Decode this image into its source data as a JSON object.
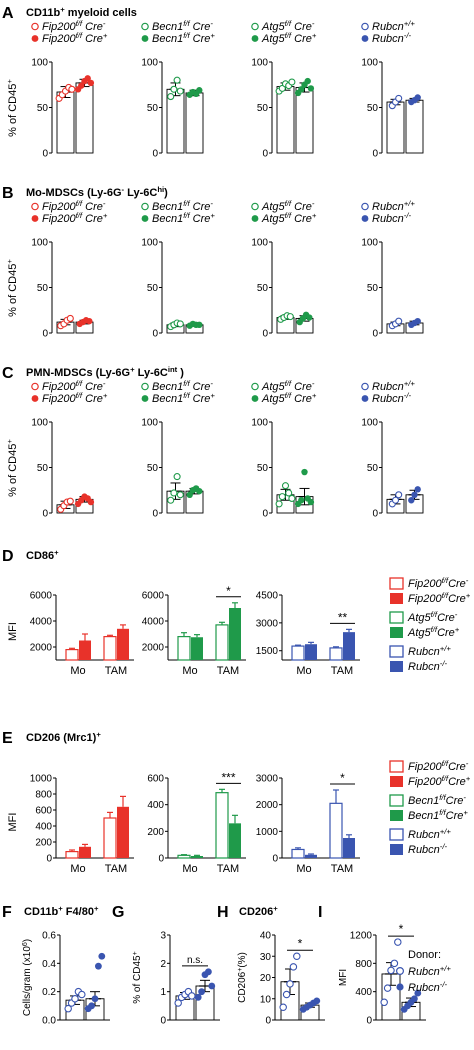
{
  "colors": {
    "red": "#e8322a",
    "green": "#1f9a4a",
    "blue": "#3a55b0",
    "axis": "#000000"
  },
  "panels": [
    {
      "letter": "A",
      "title_parts": [
        "CD11b",
        "+",
        " myeloid cells"
      ],
      "ylabel": "% of CD45",
      "ylabel_sup": "+",
      "ylim": [
        0,
        100
      ],
      "yticks": [
        "0",
        "50",
        "100"
      ],
      "groups": [
        {
          "color": "red",
          "legend": [
            [
              "Fip200",
              "f/f",
              " Cre",
              "-"
            ],
            [
              "Fip200",
              "f/f",
              " Cre",
              "+"
            ]
          ],
          "bars": [
            67,
            77
          ],
          "err": [
            6,
            4
          ],
          "points": [
            [
              60,
              64,
              68,
              72,
              70
            ],
            [
              70,
              74,
              79,
              82,
              77
            ]
          ]
        },
        {
          "color": "green",
          "legend": [
            [
              "Becn1",
              "f/f",
              " Cre",
              "-"
            ],
            [
              "Becn1",
              "f/f",
              " Cre",
              "+"
            ]
          ],
          "bars": [
            70,
            66
          ],
          "err": [
            7,
            3
          ],
          "points": [
            [
              62,
              70,
              80,
              68
            ],
            [
              64,
              67,
              65,
              69
            ]
          ]
        },
        {
          "color": "green",
          "legend": [
            [
              "Atg5",
              "f/f",
              " Cre",
              "-"
            ],
            [
              "Atg5",
              "f/f",
              " Cre",
              "+"
            ]
          ],
          "bars": [
            73,
            72
          ],
          "err": [
            4,
            5
          ],
          "points": [
            [
              68,
              71,
              76,
              74,
              78
            ],
            [
              66,
              70,
              75,
              79,
              71
            ]
          ]
        },
        {
          "color": "blue",
          "legend": [
            [
              "Rubcn",
              "+/+",
              "",
              ""
            ],
            [
              "Rubcn",
              "-/-",
              "",
              ""
            ]
          ],
          "bars": [
            56,
            58
          ],
          "err": [
            3,
            2
          ],
          "points": [
            [
              52,
              56,
              60
            ],
            [
              56,
              58,
              61
            ]
          ]
        }
      ]
    },
    {
      "letter": "B",
      "title_parts": [
        "Mo-MDSCs (Ly-6G",
        "-",
        "  Ly-6C",
        "hi",
        ")"
      ],
      "ylabel": "% of CD45",
      "ylabel_sup": "+",
      "ylim": [
        0,
        100
      ],
      "yticks": [
        "0",
        "50",
        "100"
      ],
      "groups": [
        {
          "color": "red",
          "legend": [
            [
              "Fip200",
              "f/f",
              " Cre",
              "-"
            ],
            [
              "Fip200",
              "f/f",
              " Cre",
              "+"
            ]
          ],
          "bars": [
            12,
            12
          ],
          "err": [
            3,
            2
          ],
          "points": [
            [
              8,
              10,
              14,
              16
            ],
            [
              10,
              12,
              14,
              13
            ]
          ]
        },
        {
          "color": "green",
          "legend": [
            [
              "Becn1",
              "f/f",
              " Cre",
              "-"
            ],
            [
              "Becn1",
              "f/f",
              " Cre",
              "+"
            ]
          ],
          "bars": [
            9,
            9
          ],
          "err": [
            2,
            1
          ],
          "points": [
            [
              7,
              9,
              11,
              10
            ],
            [
              8,
              10,
              9,
              9
            ]
          ]
        },
        {
          "color": "green",
          "legend": [
            [
              "Atg5",
              "f/f",
              " Cre",
              "-"
            ],
            [
              "Atg5",
              "f/f",
              " Cre",
              "+"
            ]
          ],
          "bars": [
            17,
            16
          ],
          "err": [
            2,
            3
          ],
          "points": [
            [
              15,
              17,
              19,
              18
            ],
            [
              12,
              16,
              20,
              17
            ]
          ]
        },
        {
          "color": "blue",
          "legend": [
            [
              "Rubcn",
              "+/+",
              "",
              ""
            ],
            [
              "Rubcn",
              "-/-",
              "",
              ""
            ]
          ],
          "bars": [
            10,
            11
          ],
          "err": [
            2,
            2
          ],
          "points": [
            [
              8,
              10,
              13
            ],
            [
              9,
              11,
              13
            ]
          ]
        }
      ]
    },
    {
      "letter": "C",
      "title_parts": [
        "PMN-MDSCs  (Ly-6G",
        "+",
        "  Ly-6C",
        "int",
        " )"
      ],
      "ylabel": "% of CD45",
      "ylabel_sup": "+",
      "ylim": [
        0,
        100
      ],
      "yticks": [
        "0",
        "50",
        "100"
      ],
      "groups": [
        {
          "color": "red",
          "legend": [
            [
              "Fip200",
              "f/f",
              " Cre",
              "-"
            ],
            [
              "Fip200",
              "f/f",
              " Cre",
              "+"
            ]
          ],
          "bars": [
            9,
            15
          ],
          "err": [
            4,
            3
          ],
          "points": [
            [
              4,
              8,
              12,
              13
            ],
            [
              10,
              14,
              18,
              16,
              12
            ]
          ]
        },
        {
          "color": "green",
          "legend": [
            [
              "Becn1",
              "f/f",
              " Cre",
              "-"
            ],
            [
              "Becn1",
              "f/f",
              " Cre",
              "+"
            ]
          ],
          "bars": [
            24,
            24
          ],
          "err": [
            9,
            3
          ],
          "points": [
            [
              14,
              22,
              40,
              20
            ],
            [
              20,
              25,
              27,
              24
            ]
          ]
        },
        {
          "color": "green",
          "legend": [
            [
              "Atg5",
              "f/f",
              " Cre",
              "-"
            ],
            [
              "Atg5",
              "f/f",
              " Cre",
              "+"
            ]
          ],
          "bars": [
            20,
            18
          ],
          "err": [
            6,
            9
          ],
          "points": [
            [
              10,
              18,
              30,
              22,
              16
            ],
            [
              10,
              14,
              45,
              16,
              12
            ]
          ]
        },
        {
          "color": "blue",
          "legend": [
            [
              "Rubcn",
              "+/+",
              "",
              ""
            ],
            [
              "Rubcn",
              "-/-",
              "",
              ""
            ]
          ],
          "bars": [
            15,
            20
          ],
          "err": [
            5,
            5
          ],
          "points": [
            [
              10,
              14,
              20
            ],
            [
              14,
              20,
              26
            ]
          ]
        }
      ]
    }
  ],
  "panel_d": {
    "letter": "D",
    "title_parts": [
      "CD86",
      "+"
    ],
    "ylabel": "MFI",
    "xcats": [
      "Mo",
      "TAM"
    ],
    "charts": [
      {
        "color": "red",
        "ylim": [
          1000,
          6000
        ],
        "yticks": [
          "2000",
          "4000",
          "6000"
        ],
        "ytick_vals": [
          2000,
          4000,
          6000
        ],
        "bars": [
          [
            1800,
            2500
          ],
          [
            2800,
            3400
          ]
        ],
        "err": [
          [
            100,
            500
          ],
          [
            100,
            300
          ]
        ],
        "sig": ""
      },
      {
        "color": "green",
        "ylim": [
          1000,
          6000
        ],
        "yticks": [
          "2000",
          "4000",
          "6000"
        ],
        "ytick_vals": [
          2000,
          4000,
          6000
        ],
        "bars": [
          [
            2800,
            2750
          ],
          [
            3700,
            5000
          ]
        ],
        "err": [
          [
            300,
            200
          ],
          [
            200,
            400
          ]
        ],
        "sig": "*"
      },
      {
        "color": "blue",
        "ylim": [
          1000,
          4500
        ],
        "yticks": [
          "1500",
          "3000",
          "4500"
        ],
        "ytick_vals": [
          1500,
          3000,
          4500
        ],
        "bars": [
          [
            1750,
            1850
          ],
          [
            1650,
            2500
          ]
        ],
        "err": [
          [
            50,
            100
          ],
          [
            60,
            150
          ]
        ],
        "sig": "**"
      }
    ],
    "legend": [
      {
        "color": "red",
        "open": true,
        "parts": [
          "Fip200",
          "f/f",
          "Cre",
          "-"
        ]
      },
      {
        "color": "red",
        "open": false,
        "parts": [
          "Fip200",
          "f/f",
          "Cre",
          "+"
        ]
      },
      {
        "color": "green",
        "open": true,
        "parts": [
          "Atg5",
          "f/f",
          "Cre",
          "-"
        ]
      },
      {
        "color": "green",
        "open": false,
        "parts": [
          "Atg5",
          "f/f",
          "Cre",
          "+"
        ]
      },
      {
        "color": "blue",
        "open": true,
        "parts": [
          "Rubcn",
          "+/+",
          "",
          ""
        ]
      },
      {
        "color": "blue",
        "open": false,
        "parts": [
          "Rubcn",
          "-/-",
          "",
          ""
        ]
      }
    ]
  },
  "panel_e": {
    "letter": "E",
    "title": "CD206 (Mrc1)",
    "title_sup": "+",
    "ylabel": "MFI",
    "xcats": [
      "Mo",
      "TAM"
    ],
    "charts": [
      {
        "color": "red",
        "ylim": [
          0,
          1000
        ],
        "yticks": [
          "0",
          "200",
          "400",
          "600",
          "800",
          "1000"
        ],
        "ytick_vals": [
          0,
          200,
          400,
          600,
          800,
          1000
        ],
        "bars": [
          [
            80,
            140
          ],
          [
            500,
            640
          ]
        ],
        "err": [
          [
            20,
            30
          ],
          [
            70,
            130
          ]
        ],
        "sig": ""
      },
      {
        "color": "green",
        "ylim": [
          0,
          600
        ],
        "yticks": [
          "0",
          "200",
          "400",
          "600"
        ],
        "ytick_vals": [
          0,
          200,
          400,
          600
        ],
        "bars": [
          [
            20,
            15
          ],
          [
            490,
            260
          ]
        ],
        "err": [
          [
            5,
            5
          ],
          [
            25,
            60
          ]
        ],
        "sig": "***"
      },
      {
        "color": "blue",
        "ylim": [
          0,
          3000
        ],
        "yticks": [
          "0",
          "1000",
          "2000",
          "3000"
        ],
        "ytick_vals": [
          0,
          1000,
          2000,
          3000
        ],
        "bars": [
          [
            320,
            120
          ],
          [
            2050,
            750
          ]
        ],
        "err": [
          [
            60,
            30
          ],
          [
            500,
            120
          ]
        ],
        "sig": "*"
      }
    ],
    "legend": [
      {
        "color": "red",
        "open": true,
        "parts": [
          "Fip200",
          "f/f",
          "Cre",
          "-"
        ]
      },
      {
        "color": "red",
        "open": false,
        "parts": [
          "Fip200",
          "f/f",
          "Cre",
          "+"
        ]
      },
      {
        "color": "green",
        "open": true,
        "parts": [
          "Becn1",
          "f/f",
          "Cre",
          "-"
        ]
      },
      {
        "color": "green",
        "open": false,
        "parts": [
          "Becn1",
          "f/f",
          "Cre",
          "+"
        ]
      },
      {
        "color": "blue",
        "open": true,
        "parts": [
          "Rubcn",
          "+/+",
          "",
          ""
        ]
      },
      {
        "color": "blue",
        "open": false,
        "parts": [
          "Rubcn",
          "-/-",
          "",
          ""
        ]
      }
    ]
  },
  "bottom": [
    {
      "letter": "F",
      "title_parts": [
        "CD11b",
        "+",
        "  F4/80",
        "+"
      ],
      "ylabel": "Cells/gram (x10",
      "ylabel_sup": "6",
      "ylabel_end": ")",
      "ylim": [
        0,
        0.6
      ],
      "yticks": [
        "0.0",
        "0.2",
        "0.4",
        "0.6"
      ],
      "ytick_vals": [
        0,
        0.2,
        0.4,
        0.6
      ],
      "bars": [
        0.14,
        0.15
      ],
      "err": [
        0.03,
        0.05
      ],
      "points": [
        [
          0.08,
          0.12,
          0.15,
          0.2,
          0.18
        ],
        [
          0.08,
          0.1,
          0.15,
          0.38,
          0.45
        ]
      ],
      "sig": ""
    },
    {
      "letter": "G",
      "title_parts": [
        "",
        ""
      ],
      "ylabel": "% of CD45",
      "ylabel_sup": "+",
      "ylabel_end": "",
      "ylim": [
        0,
        3
      ],
      "yticks": [
        "0",
        "1",
        "2",
        "3"
      ],
      "ytick_vals": [
        0,
        1,
        2,
        3
      ],
      "bars": [
        0.85,
        1.2
      ],
      "err": [
        0.12,
        0.2
      ],
      "points": [
        [
          0.6,
          0.8,
          0.9,
          1.0,
          0.85
        ],
        [
          0.8,
          1.0,
          1.6,
          1.7,
          1.2
        ]
      ],
      "sig": "n.s."
    },
    {
      "letter": "H",
      "title_parts": [
        "CD206",
        "+"
      ],
      "ylabel": "CD206",
      "ylabel_sup": "+",
      "ylabel_end": "(%)",
      "ylim": [
        0,
        40
      ],
      "yticks": [
        "0",
        "10",
        "20",
        "30",
        "40"
      ],
      "ytick_vals": [
        0,
        10,
        20,
        30,
        40
      ],
      "bars": [
        18,
        7
      ],
      "err": [
        6,
        1
      ],
      "points": [
        [
          6,
          12,
          17,
          25,
          30
        ],
        [
          5,
          6,
          7,
          8,
          9
        ]
      ],
      "sig": "*"
    },
    {
      "letter": "I",
      "title_parts": [
        "",
        ""
      ],
      "ylabel": "MFI",
      "ylabel_sup": "",
      "ylabel_end": "",
      "ylim": [
        0,
        1200
      ],
      "yticks": [
        "0",
        "400",
        "800",
        "1200"
      ],
      "ytick_vals": [
        0,
        400,
        800,
        1200
      ],
      "bars": [
        650,
        250
      ],
      "err": [
        160,
        60
      ],
      "points": [
        [
          250,
          450,
          700,
          800,
          1100
        ],
        [
          150,
          200,
          250,
          300,
          380
        ]
      ],
      "sig": "*"
    }
  ],
  "donor_legend": {
    "title": "Donor:",
    "items": [
      {
        "open": true,
        "parts": [
          "Rubcn",
          "+/+"
        ]
      },
      {
        "open": false,
        "parts": [
          "Rubcn",
          "-/-"
        ]
      }
    ],
    "color": "blue"
  }
}
